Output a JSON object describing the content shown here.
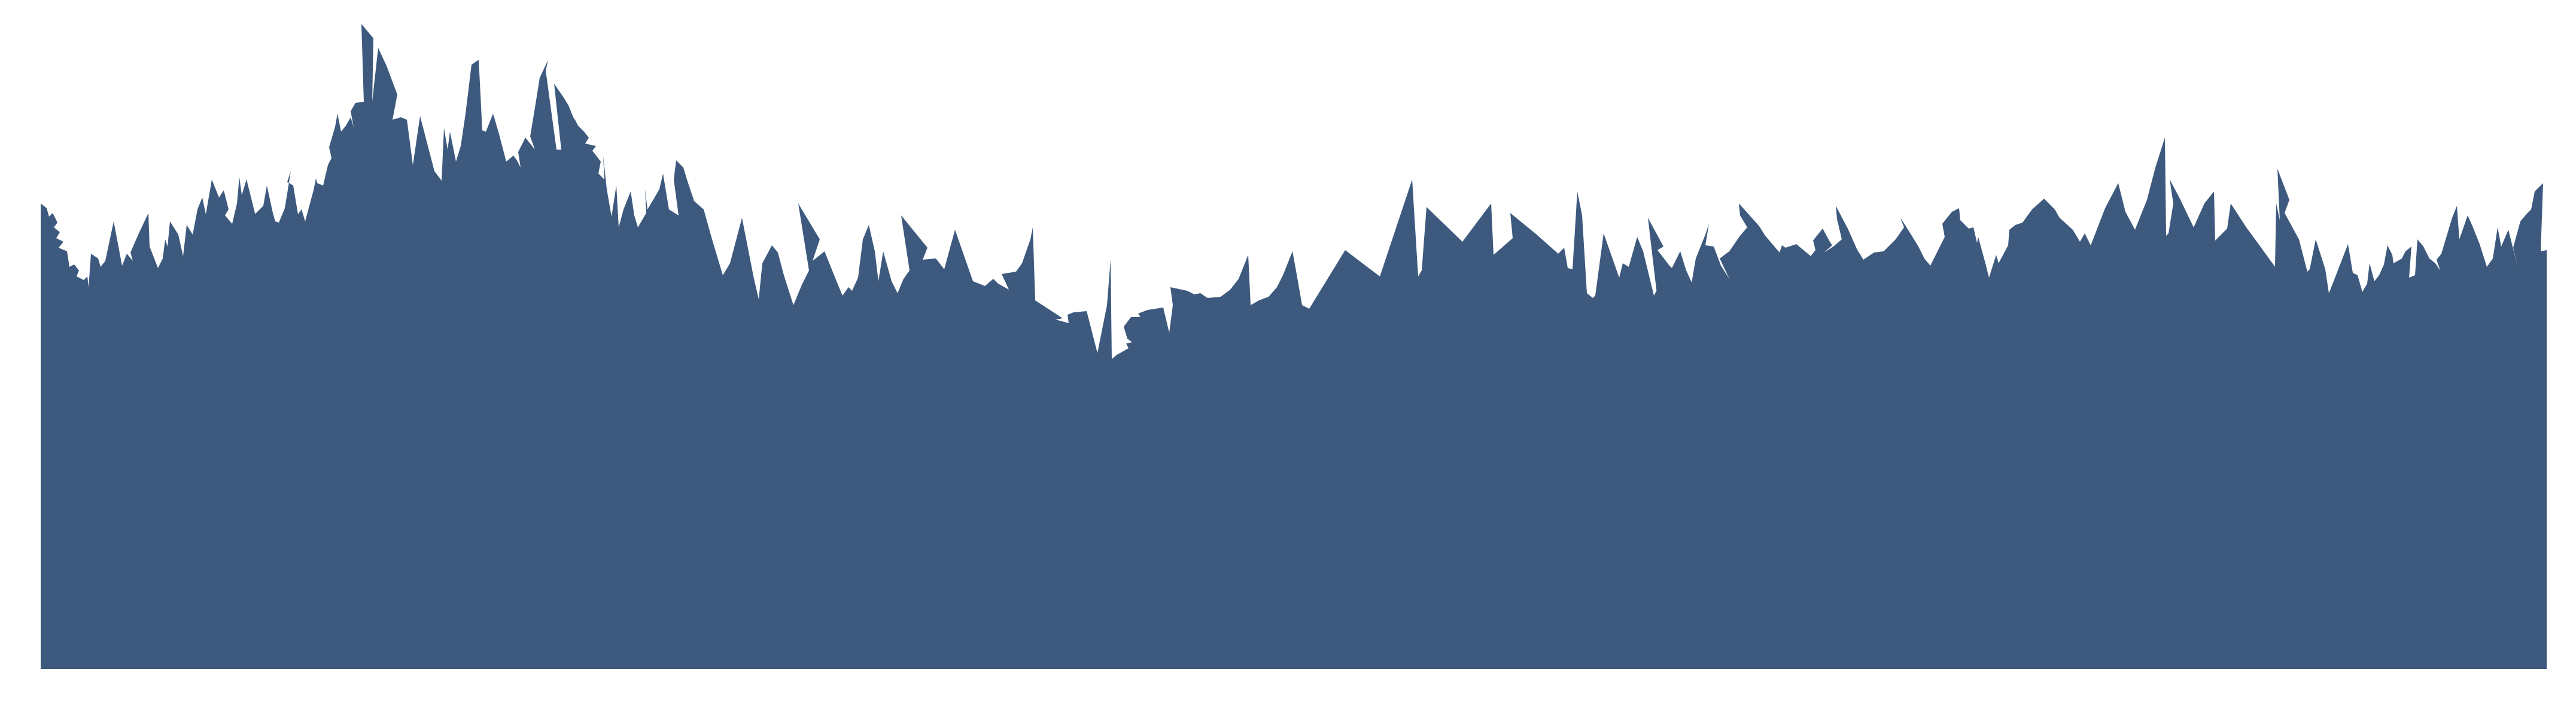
{
  "scene": {
    "subject": "grass-silhouette",
    "colors": {
      "background": "#ffffff",
      "silhouette": "#3d5a7e"
    }
  }
}
